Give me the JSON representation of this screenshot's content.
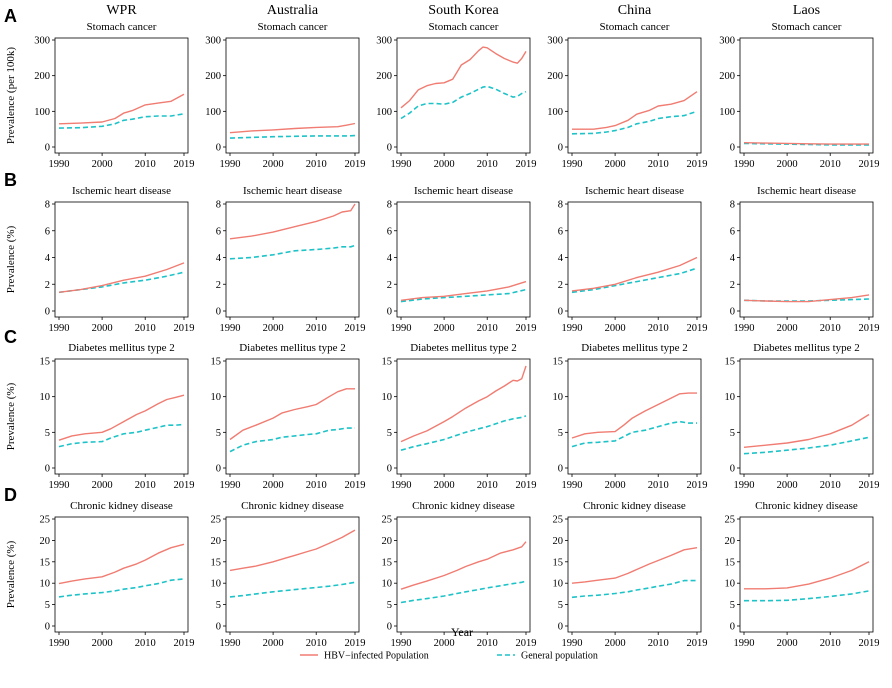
{
  "figure": {
    "x_axis_title": "Year",
    "colors": {
      "hbv": "#f07c72",
      "general": "#1ec3c8"
    }
  },
  "legend": {
    "items": [
      {
        "label": "HBV−infected Population",
        "series": "hbv"
      },
      {
        "label": "General population",
        "series": "general"
      }
    ]
  },
  "columns": [
    "WPR",
    "Australia",
    "South Korea",
    "China",
    "Laos"
  ],
  "rows": [
    {
      "letter": "A",
      "disease": "Stomach cancer",
      "ylabel": "Prevalence (per 100k)",
      "ylim": [
        0,
        300
      ],
      "yticks": [
        0,
        100,
        200,
        300
      ]
    },
    {
      "letter": "B",
      "disease": "Ischemic heart disease",
      "ylabel": "Prevalence (%)",
      "ylim": [
        0,
        8
      ],
      "yticks": [
        0,
        2,
        4,
        6,
        8
      ]
    },
    {
      "letter": "C",
      "disease": "Diabetes mellitus type 2",
      "ylabel": "Prevalence (%)",
      "ylim": [
        0,
        15
      ],
      "yticks": [
        0,
        5,
        10,
        15
      ]
    },
    {
      "letter": "D",
      "disease": "Chronic kidney disease",
      "ylabel": "Prevalence (%)",
      "ylim": [
        0,
        25
      ],
      "yticks": [
        0,
        5,
        10,
        15,
        20,
        25
      ]
    }
  ],
  "chart_data": {
    "type": "line",
    "title": "",
    "xlabel": "Year",
    "xlim": [
      1990,
      2019
    ],
    "xticks": [
      1990,
      2000,
      2010,
      2019
    ],
    "series_names": [
      "HBV−infected Population",
      "General population"
    ],
    "panels": [
      {
        "row": 0,
        "col": 0,
        "x": [
          1990,
          1995,
          2000,
          2003,
          2005,
          2007,
          2010,
          2013,
          2016,
          2019
        ],
        "hbv": [
          65,
          67,
          70,
          80,
          95,
          102,
          118,
          123,
          128,
          148
        ],
        "general": [
          53,
          54,
          58,
          65,
          75,
          78,
          85,
          87,
          87,
          93
        ]
      },
      {
        "row": 0,
        "col": 1,
        "x": [
          1990,
          1995,
          2000,
          2005,
          2010,
          2015,
          2017,
          2019
        ],
        "hbv": [
          40,
          45,
          48,
          52,
          55,
          57,
          61,
          66
        ],
        "general": [
          25,
          27,
          29,
          30,
          31,
          31,
          31,
          32
        ]
      },
      {
        "row": 0,
        "col": 2,
        "x": [
          1990,
          1992,
          1994,
          1996,
          1998,
          2000,
          2002,
          2004,
          2006,
          2008,
          2009,
          2010,
          2012,
          2014,
          2016,
          2017,
          2018,
          2019
        ],
        "hbv": [
          110,
          130,
          160,
          172,
          178,
          180,
          190,
          230,
          245,
          270,
          280,
          278,
          262,
          248,
          238,
          235,
          248,
          268
        ],
        "general": [
          80,
          95,
          115,
          122,
          122,
          120,
          125,
          140,
          150,
          162,
          168,
          170,
          162,
          150,
          140,
          142,
          150,
          155
        ]
      },
      {
        "row": 0,
        "col": 3,
        "x": [
          1990,
          1995,
          1998,
          2000,
          2003,
          2005,
          2008,
          2010,
          2013,
          2016,
          2019
        ],
        "hbv": [
          50,
          50,
          55,
          60,
          75,
          92,
          103,
          115,
          120,
          130,
          155
        ],
        "general": [
          37,
          38,
          42,
          46,
          55,
          65,
          72,
          80,
          85,
          88,
          100
        ]
      },
      {
        "row": 0,
        "col": 4,
        "x": [
          1990,
          1995,
          2000,
          2005,
          2010,
          2015,
          2019
        ],
        "hbv": [
          12,
          11,
          10,
          9,
          8,
          8,
          8
        ],
        "general": [
          10,
          9,
          8,
          7,
          6,
          6,
          6
        ]
      },
      {
        "row": 1,
        "col": 0,
        "x": [
          1990,
          1995,
          2000,
          2005,
          2010,
          2015,
          2019
        ],
        "hbv": [
          1.4,
          1.6,
          1.9,
          2.3,
          2.6,
          3.1,
          3.6
        ],
        "general": [
          1.4,
          1.6,
          1.8,
          2.1,
          2.3,
          2.6,
          2.9
        ]
      },
      {
        "row": 1,
        "col": 1,
        "x": [
          1990,
          1995,
          2000,
          2005,
          2010,
          2014,
          2016,
          2018,
          2019
        ],
        "hbv": [
          5.4,
          5.6,
          5.9,
          6.3,
          6.7,
          7.1,
          7.4,
          7.5,
          8.0
        ],
        "general": [
          3.9,
          4.0,
          4.2,
          4.5,
          4.6,
          4.7,
          4.8,
          4.8,
          4.9
        ]
      },
      {
        "row": 1,
        "col": 2,
        "x": [
          1990,
          1995,
          2000,
          2005,
          2010,
          2015,
          2019
        ],
        "hbv": [
          0.8,
          1.0,
          1.1,
          1.3,
          1.5,
          1.8,
          2.2
        ],
        "general": [
          0.7,
          0.9,
          1.0,
          1.1,
          1.2,
          1.3,
          1.6
        ]
      },
      {
        "row": 1,
        "col": 3,
        "x": [
          1990,
          1995,
          2000,
          2005,
          2010,
          2015,
          2019
        ],
        "hbv": [
          1.5,
          1.7,
          2.0,
          2.5,
          2.9,
          3.4,
          4.0
        ],
        "general": [
          1.4,
          1.6,
          1.9,
          2.2,
          2.5,
          2.8,
          3.2
        ]
      },
      {
        "row": 1,
        "col": 4,
        "x": [
          1990,
          1995,
          2000,
          2005,
          2010,
          2015,
          2019
        ],
        "hbv": [
          0.8,
          0.75,
          0.7,
          0.7,
          0.85,
          1.0,
          1.2
        ],
        "general": [
          0.8,
          0.75,
          0.75,
          0.75,
          0.8,
          0.85,
          0.9
        ]
      },
      {
        "row": 2,
        "col": 0,
        "x": [
          1990,
          1993,
          1996,
          2000,
          2002,
          2005,
          2008,
          2010,
          2013,
          2015,
          2017,
          2019
        ],
        "hbv": [
          3.9,
          4.5,
          4.8,
          5.0,
          5.5,
          6.5,
          7.5,
          8.0,
          9.0,
          9.6,
          9.9,
          10.2
        ],
        "general": [
          3.0,
          3.4,
          3.6,
          3.7,
          4.2,
          4.8,
          5.0,
          5.3,
          5.7,
          6.0,
          6.0,
          6.1
        ]
      },
      {
        "row": 2,
        "col": 1,
        "x": [
          1990,
          1993,
          1996,
          2000,
          2002,
          2005,
          2008,
          2010,
          2013,
          2015,
          2017,
          2019
        ],
        "hbv": [
          4.0,
          5.3,
          6.0,
          7.0,
          7.7,
          8.2,
          8.6,
          8.9,
          10.0,
          10.7,
          11.1,
          11.1
        ],
        "general": [
          2.3,
          3.2,
          3.7,
          4.0,
          4.3,
          4.5,
          4.7,
          4.8,
          5.3,
          5.4,
          5.6,
          5.6
        ]
      },
      {
        "row": 2,
        "col": 2,
        "x": [
          1990,
          1993,
          1996,
          2000,
          2002,
          2005,
          2008,
          2010,
          2012,
          2014,
          2016,
          2017,
          2018,
          2019
        ],
        "hbv": [
          3.7,
          4.5,
          5.2,
          6.5,
          7.2,
          8.4,
          9.4,
          10.0,
          10.8,
          11.5,
          12.3,
          12.2,
          12.5,
          14.3
        ],
        "general": [
          2.5,
          3.0,
          3.4,
          4.0,
          4.4,
          5.0,
          5.5,
          5.8,
          6.2,
          6.6,
          6.9,
          7.0,
          7.1,
          7.3
        ]
      },
      {
        "row": 2,
        "col": 3,
        "x": [
          1990,
          1993,
          1996,
          2000,
          2002,
          2004,
          2007,
          2010,
          2013,
          2015,
          2017,
          2019
        ],
        "hbv": [
          4.2,
          4.8,
          5.0,
          5.1,
          6.0,
          7.0,
          8.0,
          8.9,
          9.8,
          10.4,
          10.5,
          10.5
        ],
        "general": [
          3.0,
          3.5,
          3.6,
          3.8,
          4.4,
          5.0,
          5.3,
          5.8,
          6.3,
          6.5,
          6.3,
          6.3
        ]
      },
      {
        "row": 2,
        "col": 4,
        "x": [
          1990,
          1995,
          2000,
          2005,
          2010,
          2015,
          2019
        ],
        "hbv": [
          2.9,
          3.2,
          3.5,
          4.0,
          4.8,
          6.0,
          7.5
        ],
        "general": [
          2.0,
          2.2,
          2.5,
          2.8,
          3.2,
          3.8,
          4.3
        ]
      },
      {
        "row": 3,
        "col": 0,
        "x": [
          1990,
          1993,
          1996,
          2000,
          2003,
          2005,
          2008,
          2010,
          2013,
          2016,
          2019
        ],
        "hbv": [
          9.9,
          10.5,
          11.0,
          11.5,
          12.6,
          13.5,
          14.5,
          15.4,
          17.0,
          18.3,
          19.1
        ],
        "general": [
          6.8,
          7.2,
          7.5,
          7.8,
          8.2,
          8.6,
          9.0,
          9.4,
          9.9,
          10.7,
          11.0
        ]
      },
      {
        "row": 3,
        "col": 1,
        "x": [
          1990,
          1993,
          1996,
          2000,
          2003,
          2005,
          2008,
          2010,
          2013,
          2016,
          2019
        ],
        "hbv": [
          13.0,
          13.5,
          14.0,
          15.0,
          15.9,
          16.5,
          17.4,
          18.0,
          19.3,
          20.7,
          22.4
        ],
        "general": [
          6.8,
          7.1,
          7.5,
          8.0,
          8.3,
          8.5,
          8.8,
          9.0,
          9.3,
          9.7,
          10.2
        ]
      },
      {
        "row": 3,
        "col": 2,
        "x": [
          1990,
          1993,
          1996,
          2000,
          2003,
          2005,
          2008,
          2010,
          2013,
          2016,
          2018,
          2019
        ],
        "hbv": [
          8.6,
          9.6,
          10.5,
          11.8,
          13.0,
          13.9,
          15.0,
          15.6,
          17.0,
          17.8,
          18.5,
          19.7
        ],
        "general": [
          5.5,
          6.0,
          6.4,
          7.0,
          7.6,
          8.0,
          8.5,
          8.9,
          9.4,
          9.9,
          10.2,
          10.5
        ]
      },
      {
        "row": 3,
        "col": 3,
        "x": [
          1990,
          1993,
          1996,
          2000,
          2003,
          2005,
          2008,
          2010,
          2013,
          2016,
          2019
        ],
        "hbv": [
          10.0,
          10.3,
          10.7,
          11.2,
          12.3,
          13.2,
          14.5,
          15.3,
          16.5,
          17.8,
          18.3
        ],
        "general": [
          6.7,
          7.0,
          7.2,
          7.6,
          8.0,
          8.4,
          8.9,
          9.3,
          9.8,
          10.6,
          10.6
        ]
      },
      {
        "row": 3,
        "col": 4,
        "x": [
          1990,
          1995,
          2000,
          2005,
          2010,
          2015,
          2019
        ],
        "hbv": [
          8.7,
          8.7,
          8.9,
          9.8,
          11.2,
          13.0,
          15.0
        ],
        "general": [
          5.9,
          5.9,
          6.0,
          6.4,
          6.9,
          7.5,
          8.2
        ]
      }
    ]
  }
}
